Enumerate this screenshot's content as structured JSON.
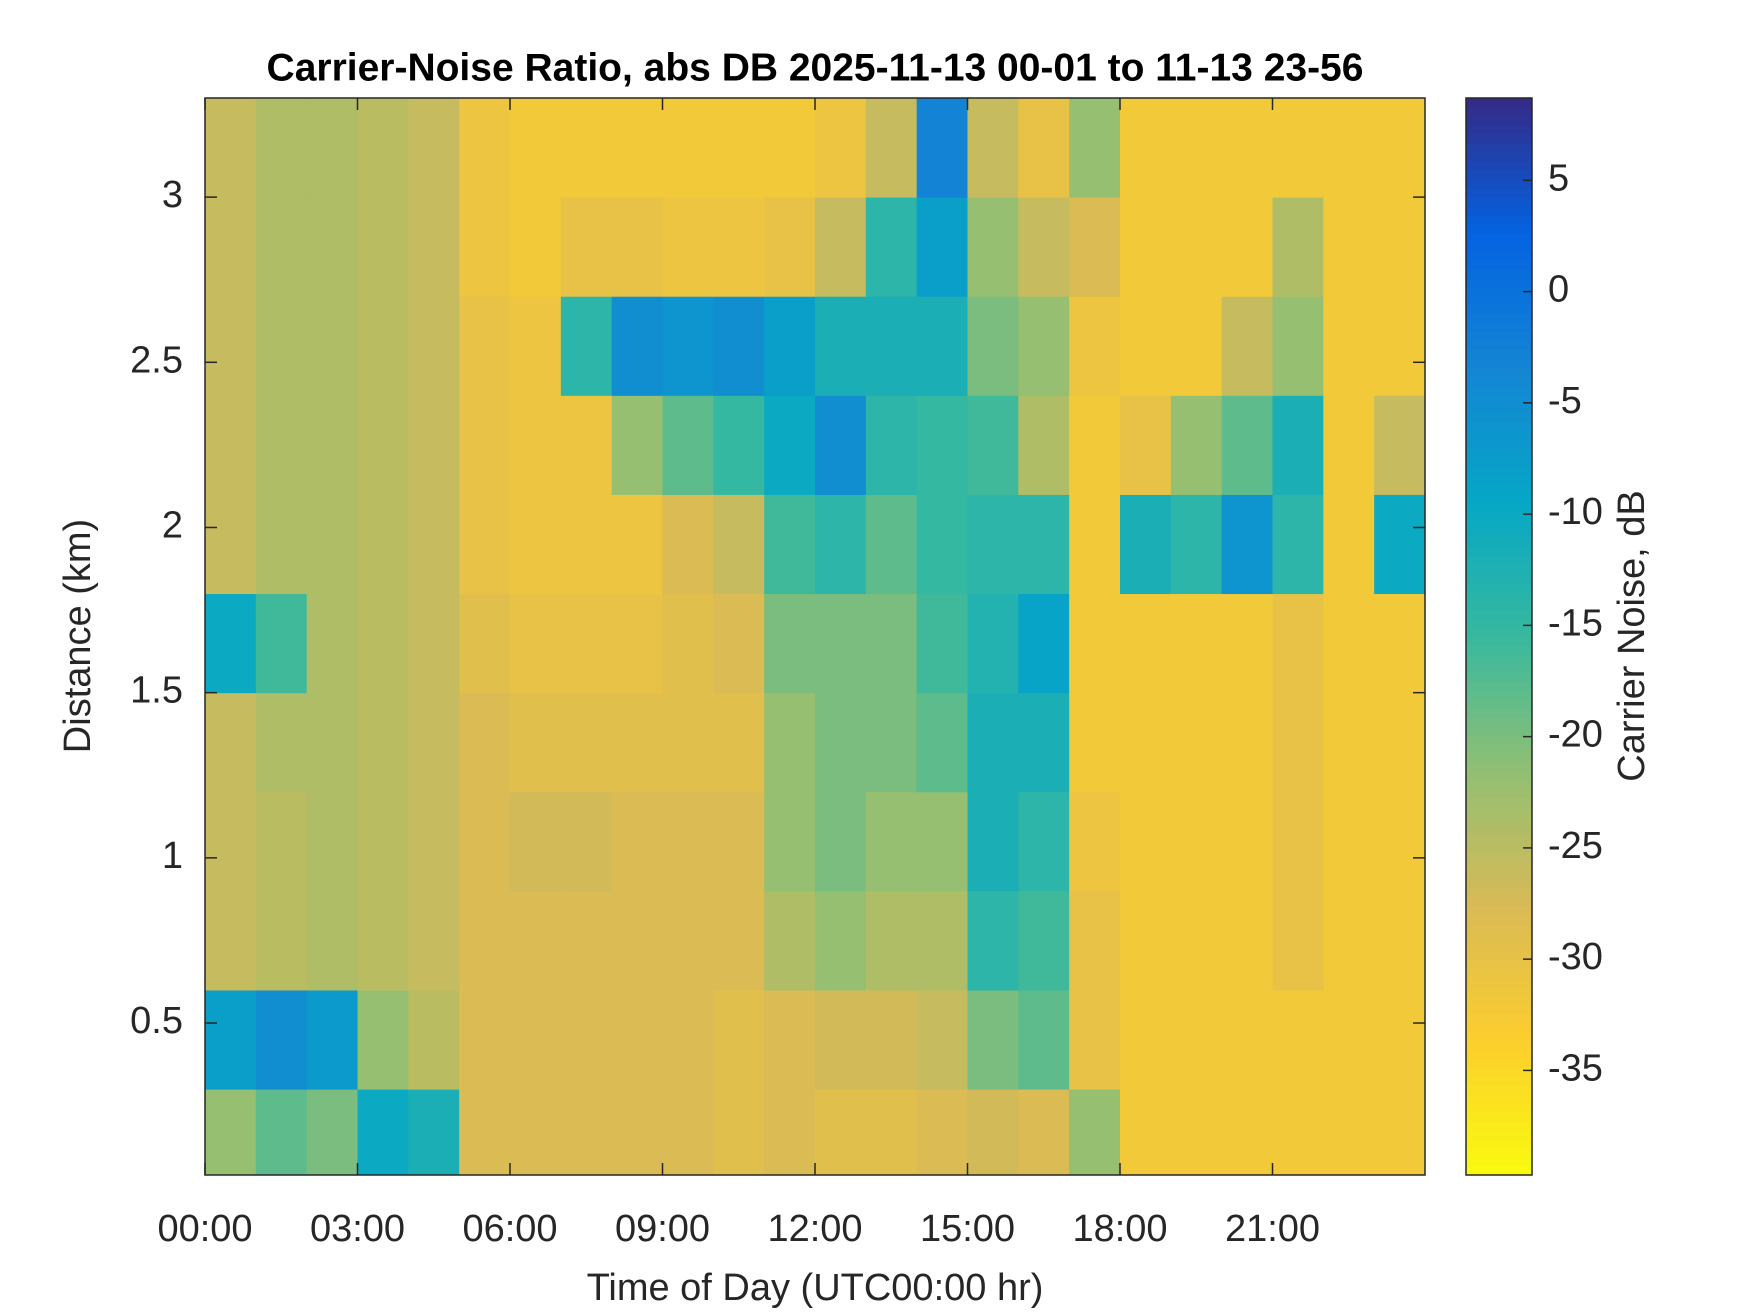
{
  "chart_data": {
    "type": "heatmap",
    "title": "Carrier-Noise Ratio, abs DB 2025-11-13 00-01 to 11-13 23-56",
    "xlabel": "Time of Day (UTC00:00 hr)",
    "ylabel": "Distance (km)",
    "colorbar_label": "Carrier Noise, dB",
    "x_edges": [
      0,
      1,
      2,
      3,
      4,
      5,
      6,
      7,
      8,
      9,
      10,
      11,
      12,
      13,
      14,
      15,
      16,
      17,
      18,
      19,
      20,
      21,
      22,
      23,
      24
    ],
    "y_edges": [
      0.04,
      0.3,
      0.6,
      0.9,
      1.2,
      1.5,
      1.8,
      2.1,
      2.4,
      2.7,
      3.0,
      3.3
    ],
    "z": [
      [
        -22,
        -18,
        -20,
        -10,
        -12,
        -28,
        -28,
        -28,
        -28,
        -28,
        -29,
        -28,
        -29,
        -29,
        -28,
        -27,
        -28,
        -22,
        -32,
        -32,
        -32,
        -32,
        -32,
        -32
      ],
      [
        -8,
        -5,
        -7,
        -22,
        -25,
        -28,
        -28,
        -28,
        -28,
        -28,
        -29,
        -28,
        -27,
        -27,
        -26,
        -20,
        -18,
        -30,
        -32,
        -32,
        -32,
        -32,
        -32,
        -32
      ],
      [
        -26,
        -25,
        -24,
        -25,
        -26,
        -28,
        -28,
        -28,
        -28,
        -28,
        -28,
        -24,
        -22,
        -24,
        -24,
        -14,
        -16,
        -30,
        -32,
        -32,
        -32,
        -30,
        -32,
        -32
      ],
      [
        -26,
        -25,
        -24,
        -25,
        -26,
        -28,
        -27,
        -27,
        -28,
        -28,
        -28,
        -22,
        -20,
        -22,
        -22,
        -12,
        -14,
        -31,
        -32,
        -32,
        -32,
        -30,
        -32,
        -32
      ],
      [
        -26,
        -24,
        -24,
        -25,
        -26,
        -28,
        -29,
        -29,
        -29,
        -29,
        -29,
        -22,
        -20,
        -20,
        -18,
        -12,
        -12,
        -32,
        -32,
        -32,
        -32,
        -30,
        -32,
        -32
      ],
      [
        -10,
        -16,
        -24,
        -25,
        -26,
        -29,
        -30,
        -30,
        -30,
        -29,
        -28,
        -20,
        -20,
        -20,
        -16,
        -13,
        -9,
        -32,
        -32,
        -32,
        -32,
        -30,
        -32,
        -32
      ],
      [
        -26,
        -24,
        -24,
        -25,
        -26,
        -30,
        -31,
        -31,
        -31,
        -28,
        -26,
        -16,
        -14,
        -18,
        -15,
        -14,
        -14,
        -32,
        -12,
        -14,
        -6,
        -14,
        -32,
        -10
      ],
      [
        -26,
        -24,
        -24,
        -25,
        -26,
        -30,
        -31,
        -31,
        -22,
        -18,
        -15,
        -10,
        -5,
        -14,
        -15,
        -16,
        -24,
        -32,
        -30,
        -22,
        -18,
        -12,
        -32,
        -26
      ],
      [
        -26,
        -24,
        -24,
        -25,
        -26,
        -30,
        -31,
        -14,
        -5,
        -6,
        -5,
        -8,
        -12,
        -12,
        -12,
        -20,
        -22,
        -31,
        -32,
        -32,
        -26,
        -22,
        -32,
        -32
      ],
      [
        -26,
        -24,
        -24,
        -25,
        -26,
        -31,
        -32,
        -30,
        -30,
        -31,
        -31,
        -30,
        -26,
        -14,
        -8,
        -22,
        -26,
        -28,
        -32,
        -32,
        -32,
        -24,
        -32,
        -32
      ],
      [
        -26,
        -24,
        -24,
        -25,
        -26,
        -31,
        -32,
        -32,
        -32,
        -32,
        -32,
        -32,
        -31,
        -26,
        -3,
        -26,
        -30,
        -22,
        -32,
        -32,
        -32,
        -32,
        -32,
        -32
      ]
    ],
    "xlim": [
      0,
      24
    ],
    "ylim": [
      0.04,
      3.3
    ],
    "zlim": [
      -39.7,
      8.7
    ],
    "xticks": [
      {
        "value": 0,
        "label": "00:00"
      },
      {
        "value": 3,
        "label": "03:00"
      },
      {
        "value": 6,
        "label": "06:00"
      },
      {
        "value": 9,
        "label": "09:00"
      },
      {
        "value": 12,
        "label": "12:00"
      },
      {
        "value": 15,
        "label": "15:00"
      },
      {
        "value": 18,
        "label": "18:00"
      },
      {
        "value": 21,
        "label": "21:00"
      }
    ],
    "yticks": [
      0.5,
      1,
      1.5,
      2,
      2.5,
      3
    ],
    "zticks": [
      -35,
      -30,
      -25,
      -20,
      -15,
      -10,
      -5,
      0,
      5
    ]
  }
}
